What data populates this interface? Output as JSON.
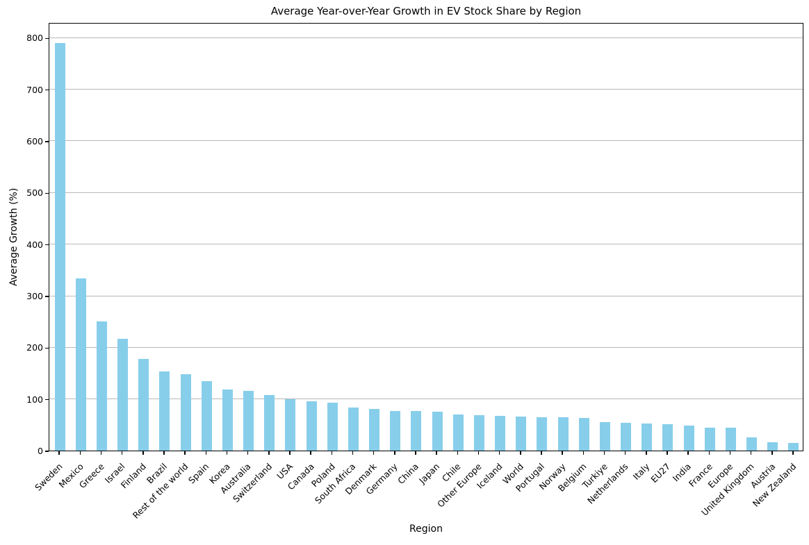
{
  "chart_data": {
    "type": "bar",
    "title": "Average Year-over-Year Growth in EV Stock Share by Region",
    "xlabel": "Region",
    "ylabel": "Average Growth (%)",
    "categories": [
      "Sweden",
      "Mexico",
      "Greece",
      "Israel",
      "Finland",
      "Brazil",
      "Rest of the world",
      "Spain",
      "Korea",
      "Australia",
      "Switzerland",
      "USA",
      "Canada",
      "Poland",
      "South Africa",
      "Denmark",
      "Germany",
      "China",
      "Japan",
      "Chile",
      "Other Europe",
      "Iceland",
      "World",
      "Portugal",
      "Norway",
      "Belgium",
      "Turkiye",
      "Netherlands",
      "Italy",
      "EU27",
      "India",
      "France",
      "Europe",
      "United Kingdom",
      "Austria",
      "New Zealand"
    ],
    "values": [
      790,
      333,
      250,
      217,
      177,
      153,
      148,
      135,
      119,
      116,
      108,
      100,
      96,
      93,
      84,
      81,
      77,
      77,
      76,
      70,
      69,
      67,
      66,
      65,
      64,
      63,
      55,
      54,
      52,
      51,
      48,
      45,
      44,
      26,
      16,
      15
    ],
    "y_ticks": [
      0,
      100,
      200,
      300,
      400,
      500,
      600,
      700,
      800
    ],
    "ylim": [
      0,
      830
    ],
    "grid": "horizontal-only",
    "legend": "none",
    "bar_color": "#87CEEB",
    "grid_color": "#b8b8b8",
    "axis_color": "#000000",
    "background": "#ffffff"
  }
}
